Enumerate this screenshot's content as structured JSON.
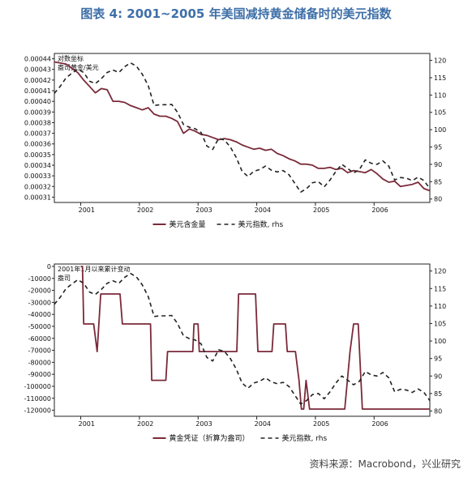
{
  "page": {
    "title": "图表 4:  2001~2005 年美国减持黄金储备时的美元指数",
    "source": "资料来源：Macrobond，兴业研究"
  },
  "colors": {
    "gold_series": "#7a2a3a",
    "dollar_series": "#222222",
    "axis": "#222222",
    "title": "#3e6fa8"
  },
  "chart_data": [
    {
      "type": "line",
      "annotation": "对数坐标\n盎司黄金/美元",
      "xlabel": "",
      "x_ticks": [
        "2001",
        "2002",
        "2003",
        "2004",
        "2005",
        "2006"
      ],
      "xlim": [
        2000.55,
        2006.95
      ],
      "ylim_left": [
        0.000305,
        0.000445
      ],
      "ylim_right": [
        79,
        122
      ],
      "left_ticks": [
        "0.00044",
        "0.00043",
        "0.00042",
        "0.00041",
        "0.00040",
        "0.00039",
        "0.00038",
        "0.00037",
        "0.00036",
        "0.00035",
        "0.00034",
        "0.00033",
        "0.00032",
        "0.00031"
      ],
      "left_tick_values": [
        0.00044,
        0.00043,
        0.00042,
        0.00041,
        0.0004,
        0.00039,
        0.00038,
        0.00037,
        0.00036,
        0.00035,
        0.00034,
        0.00033,
        0.00032,
        0.00031
      ],
      "right_ticks": [
        "120",
        "115",
        "110",
        "105",
        "100",
        "95",
        "90",
        "85",
        "80"
      ],
      "right_tick_values": [
        120,
        115,
        110,
        105,
        100,
        95,
        90,
        85,
        80
      ],
      "series": [
        {
          "name": "美元含金量",
          "axis": "left",
          "style": "solid",
          "x": [
            2000.55,
            2000.65,
            2000.75,
            2000.85,
            2000.95,
            2001.05,
            2001.15,
            2001.25,
            2001.35,
            2001.45,
            2001.55,
            2001.65,
            2001.75,
            2001.85,
            2001.95,
            2002.05,
            2002.15,
            2002.25,
            2002.35,
            2002.45,
            2002.55,
            2002.65,
            2002.75,
            2002.85,
            2002.95,
            2003.05,
            2003.15,
            2003.25,
            2003.35,
            2003.45,
            2003.55,
            2003.65,
            2003.75,
            2003.85,
            2003.95,
            2004.05,
            2004.15,
            2004.25,
            2004.35,
            2004.45,
            2004.55,
            2004.65,
            2004.75,
            2004.85,
            2004.95,
            2005.05,
            2005.15,
            2005.25,
            2005.35,
            2005.45,
            2005.55,
            2005.65,
            2005.75,
            2005.85,
            2005.95,
            2006.05,
            2006.15,
            2006.25,
            2006.35,
            2006.45,
            2006.55,
            2006.65,
            2006.75,
            2006.85,
            2006.95
          ],
          "values": [
            0.000437,
            0.000436,
            0.000435,
            0.000431,
            0.000427,
            0.00042,
            0.000414,
            0.000408,
            0.000412,
            0.000411,
            0.0004,
            0.0004,
            0.000399,
            0.000396,
            0.000394,
            0.000392,
            0.000394,
            0.000388,
            0.000386,
            0.000386,
            0.000384,
            0.000381,
            0.00037,
            0.000374,
            0.000372,
            0.000369,
            0.000368,
            0.000366,
            0.000364,
            0.000365,
            0.000364,
            0.000362,
            0.000359,
            0.000357,
            0.000355,
            0.000356,
            0.000354,
            0.000355,
            0.000351,
            0.000349,
            0.000346,
            0.000344,
            0.000341,
            0.000341,
            0.00034,
            0.000337,
            0.000337,
            0.000338,
            0.000336,
            0.000337,
            0.000333,
            0.000335,
            0.000334,
            0.000333,
            0.000336,
            0.000332,
            0.000327,
            0.000324,
            0.000325,
            0.00032,
            0.000321,
            0.000322,
            0.000324,
            0.000318,
            0.000316
          ]
        },
        {
          "name": "美元指数, rhs",
          "axis": "right",
          "style": "dashed",
          "x": [
            2000.55,
            2000.65,
            2000.75,
            2000.85,
            2000.95,
            2001.05,
            2001.15,
            2001.25,
            2001.35,
            2001.45,
            2001.55,
            2001.65,
            2001.75,
            2001.85,
            2001.95,
            2002.05,
            2002.15,
            2002.25,
            2002.35,
            2002.45,
            2002.55,
            2002.65,
            2002.75,
            2002.85,
            2002.95,
            2003.05,
            2003.15,
            2003.25,
            2003.35,
            2003.45,
            2003.55,
            2003.65,
            2003.75,
            2003.85,
            2003.95,
            2004.05,
            2004.15,
            2004.25,
            2004.35,
            2004.45,
            2004.55,
            2004.65,
            2004.75,
            2004.85,
            2004.95,
            2005.05,
            2005.15,
            2005.25,
            2005.35,
            2005.45,
            2005.55,
            2005.65,
            2005.75,
            2005.85,
            2005.95,
            2006.05,
            2006.15,
            2006.25,
            2006.35,
            2006.45,
            2006.55,
            2006.65,
            2006.75,
            2006.85,
            2006.95
          ],
          "values": [
            110.5,
            112.5,
            115.0,
            116.3,
            117.5,
            116.5,
            114.0,
            113.3,
            114.7,
            116.5,
            117.2,
            116.5,
            118.2,
            119.3,
            118.3,
            116.0,
            112.7,
            107.0,
            107.2,
            107.2,
            107.3,
            105.0,
            101.5,
            100.7,
            100.3,
            99.2,
            95.3,
            94.3,
            97.5,
            97.0,
            95.0,
            92.0,
            88.0,
            86.5,
            88.0,
            88.5,
            89.5,
            88.3,
            87.8,
            88.2,
            87.0,
            84.5,
            82.0,
            83.0,
            84.7,
            85.0,
            83.5,
            85.5,
            88.0,
            90.0,
            88.8,
            87.5,
            88.5,
            91.3,
            90.3,
            90.0,
            91.0,
            89.5,
            85.5,
            86.2,
            86.0,
            85.3,
            86.3,
            85.3,
            83.0
          ]
        }
      ],
      "legend": [
        "美元含金量",
        "美元指数, rhs"
      ],
      "legend_position": "bottom-center"
    },
    {
      "type": "line",
      "annotation": "2001年1月以来累计变动\n盎司",
      "xlabel": "",
      "x_ticks": [
        "2001",
        "2002",
        "2003",
        "2004",
        "2005",
        "2006"
      ],
      "xlim": [
        2000.55,
        2006.95
      ],
      "ylim_left": [
        -125000,
        2000
      ],
      "ylim_right": [
        78.5,
        122
      ],
      "left_ticks": [
        "0",
        "-10000",
        "-20000",
        "-30000",
        "-40000",
        "-50000",
        "-60000",
        "-70000",
        "-80000",
        "-90000",
        "-100000",
        "-110000",
        "-120000"
      ],
      "left_tick_values": [
        0,
        -10000,
        -20000,
        -30000,
        -40000,
        -50000,
        -60000,
        -70000,
        -80000,
        -90000,
        -100000,
        -110000,
        -120000
      ],
      "right_ticks": [
        "120",
        "115",
        "110",
        "105",
        "100",
        "95",
        "90",
        "85",
        "80"
      ],
      "right_tick_values": [
        120,
        115,
        110,
        105,
        100,
        95,
        90,
        85,
        80
      ],
      "series": [
        {
          "name": "黄金凭证（折算为盎司）",
          "axis": "left",
          "style": "solid",
          "x": [
            2001.0,
            2001.03,
            2001.05,
            2001.22,
            2001.28,
            2001.34,
            2001.4,
            2001.45,
            2001.67,
            2001.71,
            2001.75,
            2002.16,
            2002.19,
            2002.21,
            2002.42,
            2002.45,
            2002.48,
            2002.88,
            2002.91,
            2002.93,
            2003.0,
            2003.02,
            2003.06,
            2003.13,
            2003.16,
            2003.63,
            2003.66,
            2003.69,
            2003.95,
            2003.98,
            2004.02,
            2004.23,
            2004.26,
            2004.29,
            2004.45,
            2004.49,
            2004.52,
            2004.66,
            2004.72,
            2004.76,
            2004.8,
            2004.84,
            2004.9,
            2004.93,
            2004.95,
            2005.0,
            2005.06,
            2005.5,
            2005.59,
            2005.65,
            2005.73,
            2005.8,
            2005.85,
            2005.88,
            2006.95
          ],
          "values": [
            0,
            0,
            -48000,
            -48000,
            -71000,
            -23000,
            -23000,
            -23000,
            -23000,
            -48000,
            -48000,
            -48000,
            -48000,
            -95000,
            -95000,
            -95000,
            -71000,
            -71000,
            -71000,
            -48000,
            -48000,
            -71000,
            -71000,
            -71000,
            -71000,
            -71000,
            -71000,
            -23000,
            -23000,
            -23000,
            -71000,
            -71000,
            -71000,
            -48000,
            -48000,
            -48000,
            -71000,
            -71000,
            -95000,
            -119000,
            -119000,
            -95000,
            -119000,
            -119000,
            -119000,
            -119000,
            -119000,
            -119000,
            -71000,
            -48000,
            -48000,
            -119000,
            -119000,
            -119000,
            -119000
          ]
        },
        {
          "name": "美元指数, rhs",
          "axis": "right",
          "style": "dashed",
          "x": [
            2000.55,
            2000.65,
            2000.75,
            2000.85,
            2000.95,
            2001.05,
            2001.15,
            2001.25,
            2001.35,
            2001.45,
            2001.55,
            2001.65,
            2001.75,
            2001.85,
            2001.95,
            2002.05,
            2002.15,
            2002.25,
            2002.35,
            2002.45,
            2002.55,
            2002.65,
            2002.75,
            2002.85,
            2002.95,
            2003.05,
            2003.15,
            2003.25,
            2003.35,
            2003.45,
            2003.55,
            2003.65,
            2003.75,
            2003.85,
            2003.95,
            2004.05,
            2004.15,
            2004.25,
            2004.35,
            2004.45,
            2004.55,
            2004.65,
            2004.75,
            2004.85,
            2004.95,
            2005.05,
            2005.15,
            2005.25,
            2005.35,
            2005.45,
            2005.55,
            2005.65,
            2005.75,
            2005.85,
            2005.95,
            2006.05,
            2006.15,
            2006.25,
            2006.35,
            2006.45,
            2006.55,
            2006.65,
            2006.75,
            2006.85,
            2006.95
          ],
          "values": [
            110.5,
            112.5,
            115.0,
            116.3,
            117.5,
            116.5,
            114.0,
            113.3,
            114.7,
            116.5,
            117.2,
            116.5,
            118.2,
            119.3,
            118.3,
            116.0,
            112.7,
            107.0,
            107.2,
            107.2,
            107.3,
            105.0,
            101.5,
            100.7,
            100.3,
            99.2,
            95.3,
            94.3,
            97.5,
            97.0,
            95.0,
            92.0,
            88.0,
            86.5,
            88.0,
            88.5,
            89.5,
            88.3,
            87.8,
            88.2,
            87.0,
            84.5,
            82.0,
            83.0,
            84.7,
            85.0,
            83.5,
            85.5,
            88.0,
            90.0,
            88.8,
            87.5,
            88.5,
            91.3,
            90.3,
            90.0,
            91.0,
            89.5,
            85.5,
            86.2,
            86.0,
            85.3,
            86.3,
            85.3,
            83.0
          ]
        }
      ],
      "legend": [
        "黄金凭证（折算为盎司）",
        "美元指数, rhs"
      ],
      "legend_position": "bottom-center"
    }
  ]
}
